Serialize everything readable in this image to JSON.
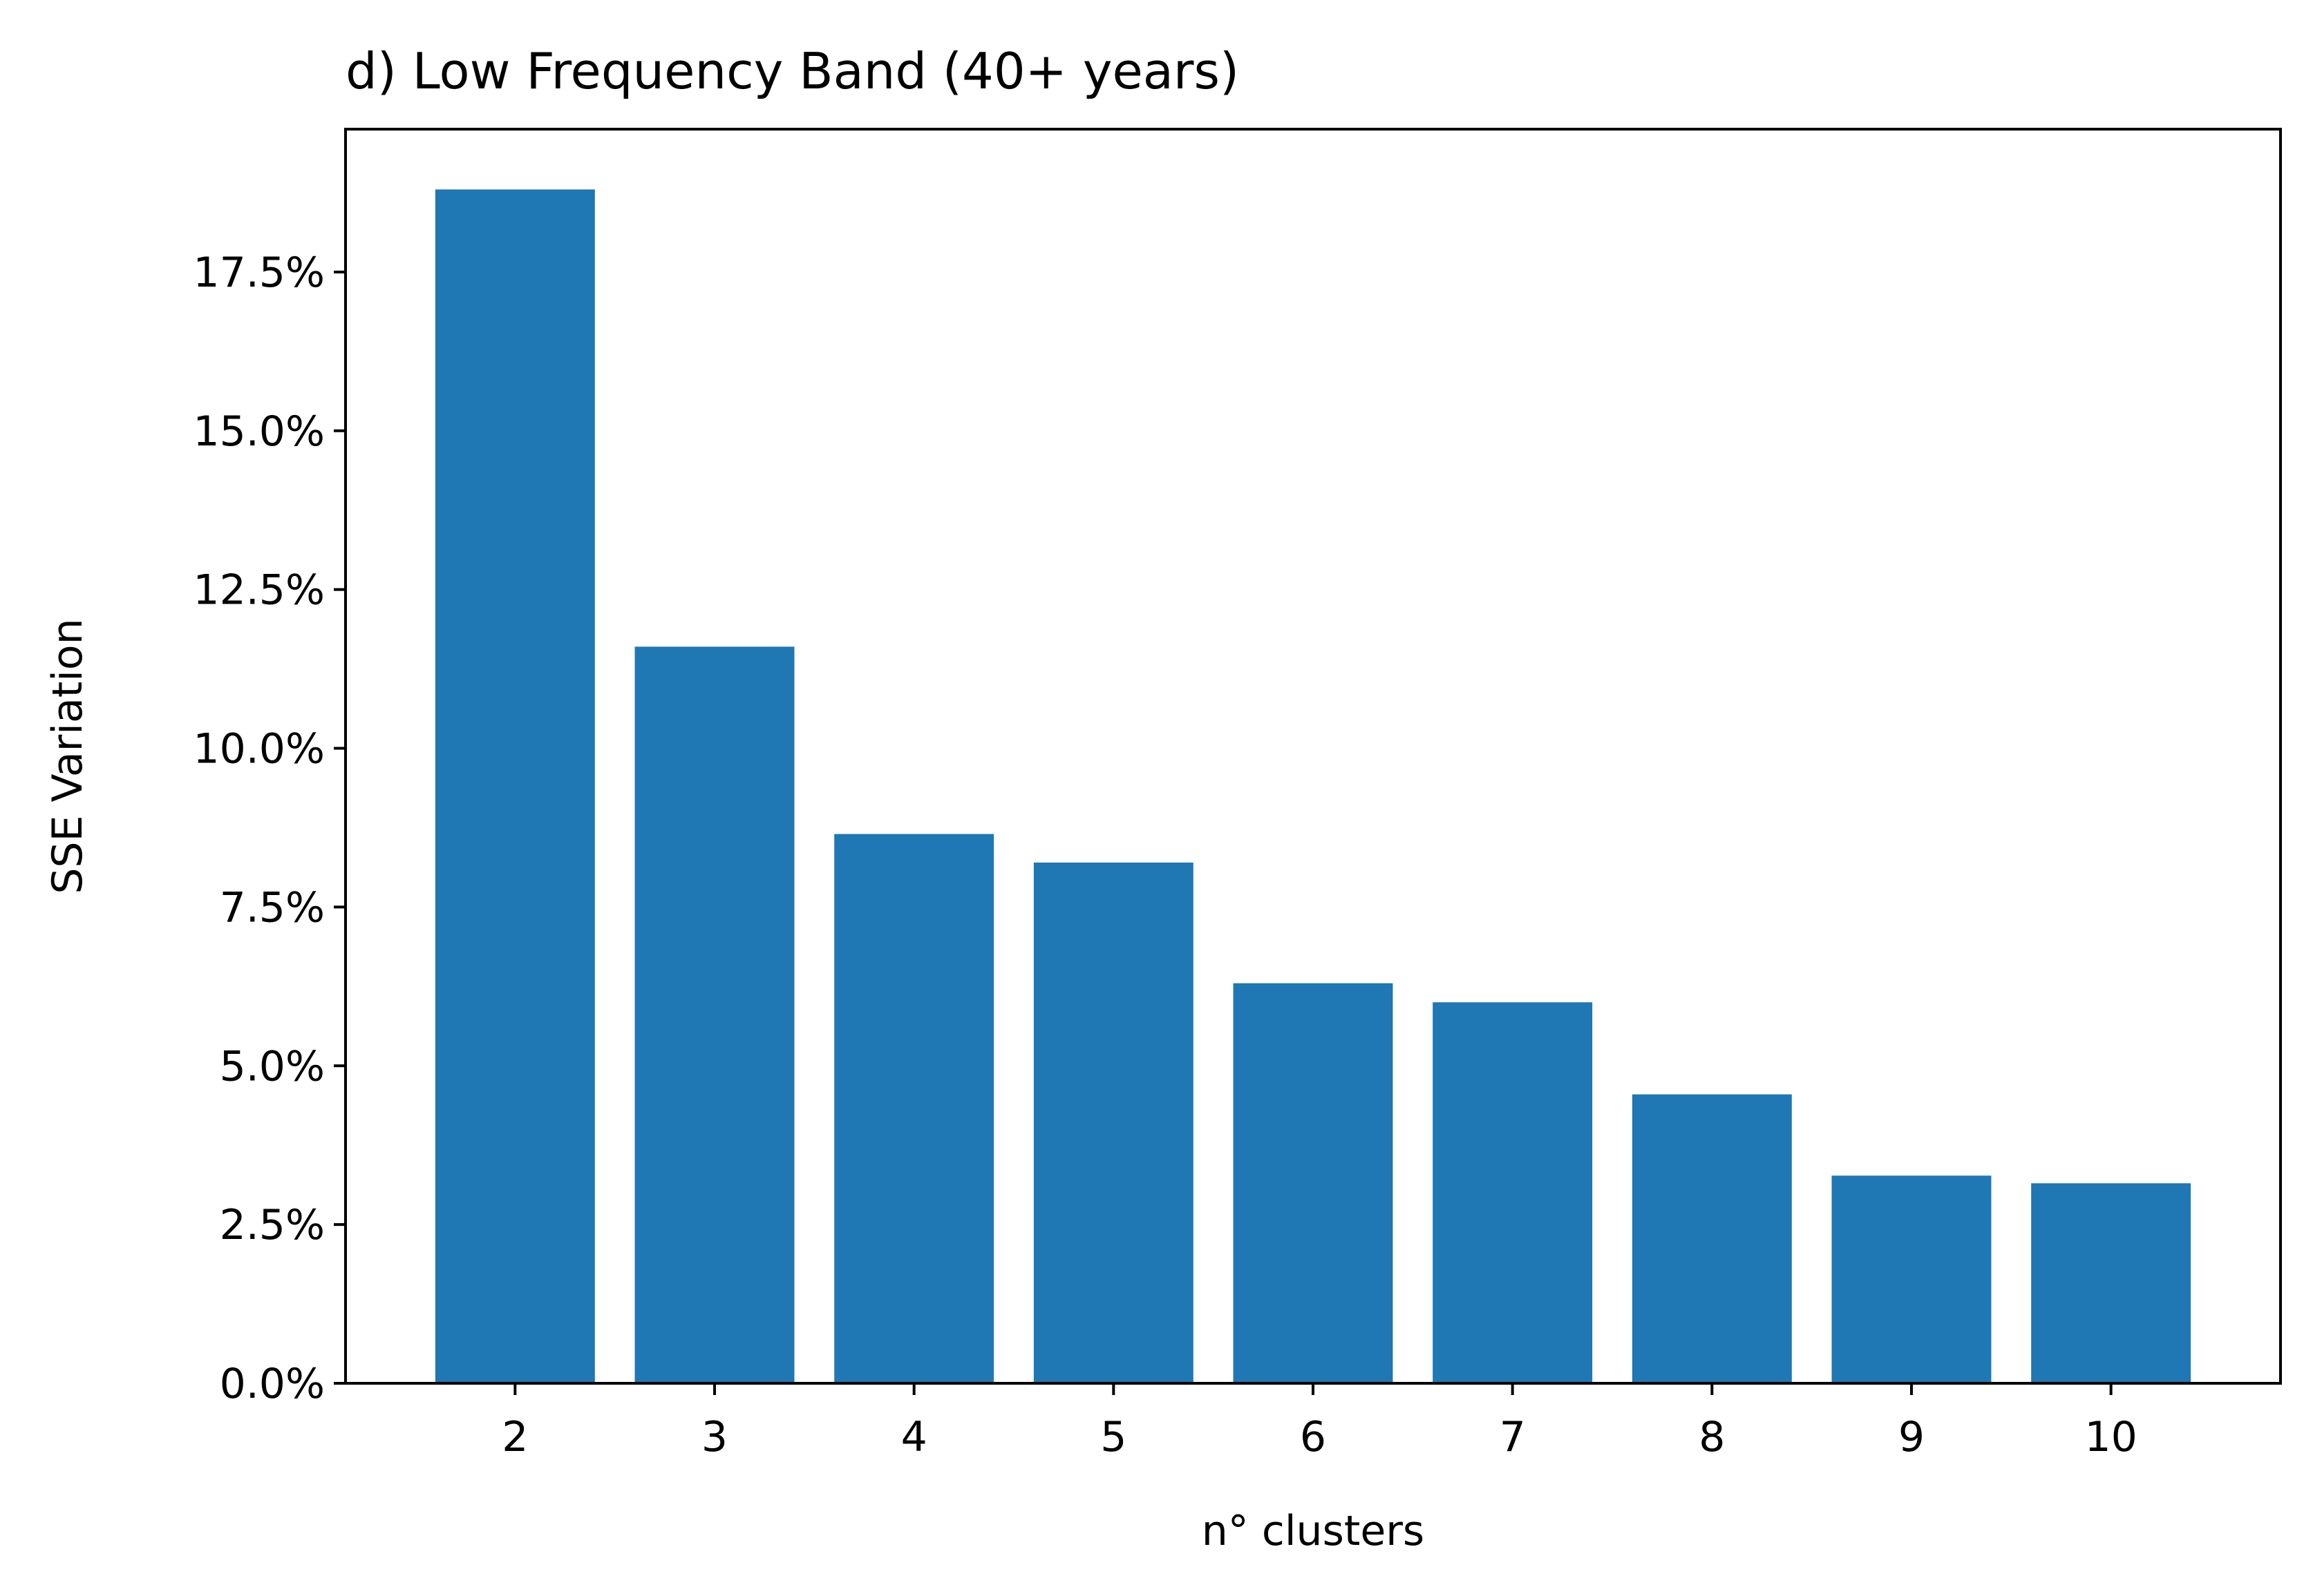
{
  "chart_data": {
    "type": "bar",
    "title": "d) Low Frequency Band (40+ years)",
    "xlabel": "n° clusters",
    "ylabel": "SSE Variation",
    "categories": [
      "2",
      "3",
      "4",
      "5",
      "6",
      "7",
      "8",
      "9",
      "10"
    ],
    "values": [
      18.8,
      11.6,
      8.65,
      8.2,
      6.3,
      6.0,
      4.55,
      3.27,
      3.15
    ],
    "ylim": [
      0,
      19.75
    ],
    "yticks": [
      0.0,
      2.5,
      5.0,
      7.5,
      10.0,
      12.5,
      15.0,
      17.5
    ],
    "ytick_labels": [
      "0.0%",
      "2.5%",
      "5.0%",
      "7.5%",
      "10.0%",
      "12.5%",
      "15.0%",
      "17.5%"
    ],
    "bar_color": "#1f77b4",
    "grid": false,
    "legend": false
  }
}
